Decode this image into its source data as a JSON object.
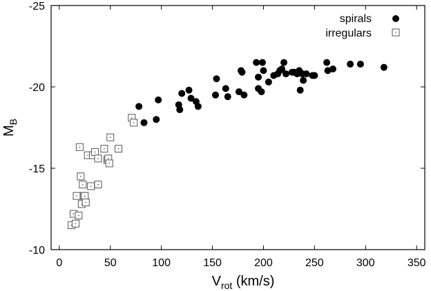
{
  "chart_data": {
    "type": "scatter",
    "xlabel_main": "V",
    "xlabel_sub": "rot",
    "xlabel_unit": " (km/s)",
    "ylabel_main": "M",
    "ylabel_sub": "B",
    "xlim": [
      -8,
      358
    ],
    "ylim": [
      -10,
      -25
    ],
    "xticks": [
      0,
      50,
      100,
      150,
      200,
      250,
      300,
      350
    ],
    "yticks": [
      -10,
      -15,
      -20,
      -25
    ],
    "legend_position": "top-right",
    "series": [
      {
        "name": "spirals",
        "marker": "filled-circle",
        "color": "#000000",
        "points": [
          [
            78,
            -18.8
          ],
          [
            83,
            -17.8
          ],
          [
            95,
            -18.0
          ],
          [
            97,
            -19.2
          ],
          [
            117,
            -18.9
          ],
          [
            118,
            -18.6
          ],
          [
            120,
            -19.6
          ],
          [
            127,
            -19.8
          ],
          [
            129,
            -19.3
          ],
          [
            134,
            -19.1
          ],
          [
            136,
            -18.8
          ],
          [
            153,
            -19.5
          ],
          [
            154,
            -20.5
          ],
          [
            163,
            -19.9
          ],
          [
            165,
            -19.4
          ],
          [
            176,
            -19.7
          ],
          [
            178,
            -21.0
          ],
          [
            179,
            -20.9
          ],
          [
            181,
            -19.5
          ],
          [
            193,
            -21.5
          ],
          [
            195,
            -20.6
          ],
          [
            195,
            -19.9
          ],
          [
            198,
            -19.7
          ],
          [
            199,
            -21.5
          ],
          [
            200,
            -21.0
          ],
          [
            205,
            -20.3
          ],
          [
            210,
            -20.7
          ],
          [
            214,
            -20.8
          ],
          [
            216,
            -21.0
          ],
          [
            218,
            -21.1
          ],
          [
            220,
            -21.5
          ],
          [
            222,
            -20.8
          ],
          [
            228,
            -20.9
          ],
          [
            230,
            -20.9
          ],
          [
            233,
            -20.8
          ],
          [
            235,
            -21.0
          ],
          [
            236,
            -20.9
          ],
          [
            236,
            -19.8
          ],
          [
            238,
            -20.8
          ],
          [
            239,
            -20.4
          ],
          [
            242,
            -20.8
          ],
          [
            248,
            -20.7
          ],
          [
            250,
            -20.7
          ],
          [
            262,
            -21.5
          ],
          [
            263,
            -21.0
          ],
          [
            268,
            -21.1
          ],
          [
            285,
            -21.4
          ],
          [
            295,
            -21.4
          ],
          [
            318,
            -21.2
          ]
        ]
      },
      {
        "name": "irregulars",
        "marker": "open-square",
        "color": "#000000",
        "points": [
          [
            12,
            -11.5
          ],
          [
            14,
            -12.2
          ],
          [
            16,
            -11.6
          ],
          [
            17,
            -13.3
          ],
          [
            19,
            -12.1
          ],
          [
            20,
            -16.3
          ],
          [
            21,
            -14.5
          ],
          [
            22,
            -12.8
          ],
          [
            23,
            -14.0
          ],
          [
            24,
            -13.3
          ],
          [
            25,
            -13.3
          ],
          [
            26,
            -12.9
          ],
          [
            28,
            -15.8
          ],
          [
            31,
            -13.9
          ],
          [
            33,
            -15.8
          ],
          [
            35,
            -16.0
          ],
          [
            38,
            -15.6
          ],
          [
            38,
            -14.0
          ],
          [
            44,
            -16.2
          ],
          [
            47,
            -15.5
          ],
          [
            48,
            -15.6
          ],
          [
            49,
            -15.3
          ],
          [
            50,
            -16.9
          ],
          [
            58,
            -16.2
          ],
          [
            71,
            -18.1
          ],
          [
            73,
            -17.8
          ]
        ]
      }
    ]
  }
}
